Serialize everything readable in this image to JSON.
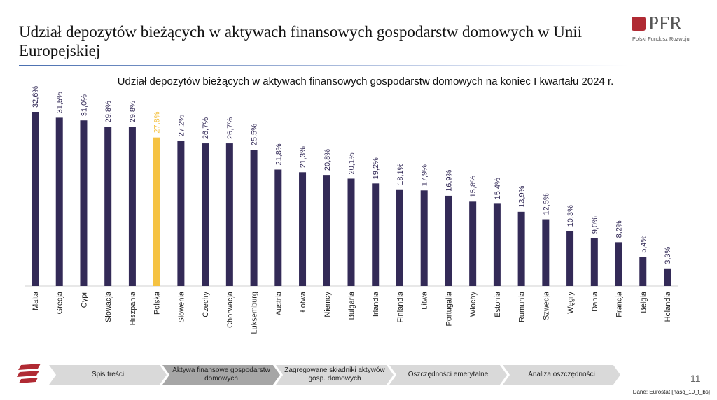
{
  "header": {
    "title": "Udział depozytów bieżących w aktywach finansowych gospodarstw domowych w Unii Europejskiej",
    "logo_text": "PFR",
    "logo_subtitle": "Polski Fundusz Rozwoju"
  },
  "chart_data": {
    "type": "bar",
    "title": "Udział depozytów bieżących w aktywach finansowych gospodarstw domowych na koniec I kwartału 2024 r.",
    "xlabel": "",
    "ylabel": "",
    "ylim": [
      0,
      34
    ],
    "grid": false,
    "legend": "none",
    "categories": [
      "Malta",
      "Grecja",
      "Cypr",
      "Słowacja",
      "Hiszpania",
      "Polska",
      "Słowenia",
      "Czechy",
      "Chorwacja",
      "Luksemburg",
      "Austria",
      "Łotwa",
      "Niemcy",
      "Bułgaria",
      "Irlandia",
      "Finlandia",
      "Litwa",
      "Portugalia",
      "Włochy",
      "Estonia",
      "Rumunia",
      "Szwecja",
      "Węgry",
      "Dania",
      "Francja",
      "Belgia",
      "Holandia"
    ],
    "values": [
      32.6,
      31.5,
      31.0,
      29.8,
      29.8,
      27.8,
      27.2,
      26.7,
      26.7,
      25.5,
      21.8,
      21.3,
      20.8,
      20.1,
      19.2,
      18.1,
      17.9,
      16.9,
      15.8,
      15.4,
      13.9,
      12.5,
      10.3,
      9.0,
      8.2,
      5.4,
      3.3
    ],
    "data_labels": [
      "32,6%",
      "31,5%",
      "31,0%",
      "29,8%",
      "29,8%",
      "27,8%",
      "27,2%",
      "26,7%",
      "26,7%",
      "25,5%",
      "21,8%",
      "21,3%",
      "20,8%",
      "20,1%",
      "19,2%",
      "18,1%",
      "17,9%",
      "16,9%",
      "15,8%",
      "15,4%",
      "13,9%",
      "12,5%",
      "10,3%",
      "9,0%",
      "8,2%",
      "5,4%",
      "3,3%"
    ],
    "highlight": "Polska",
    "colors": {
      "bar": "#332a57",
      "highlight": "#f5c242",
      "label": "#332a57"
    }
  },
  "nav": {
    "steps": [
      "Spis treści",
      "Aktywa finansowe gospodarstw domowych",
      "Zagregowane składniki aktywów gosp. domowych",
      "Oszczędności emerytalne",
      "Analiza oszczędności"
    ],
    "active": 1
  },
  "footer": {
    "page": "11",
    "source": "Dane: Eurostat [nasq_10_f_bs]"
  }
}
